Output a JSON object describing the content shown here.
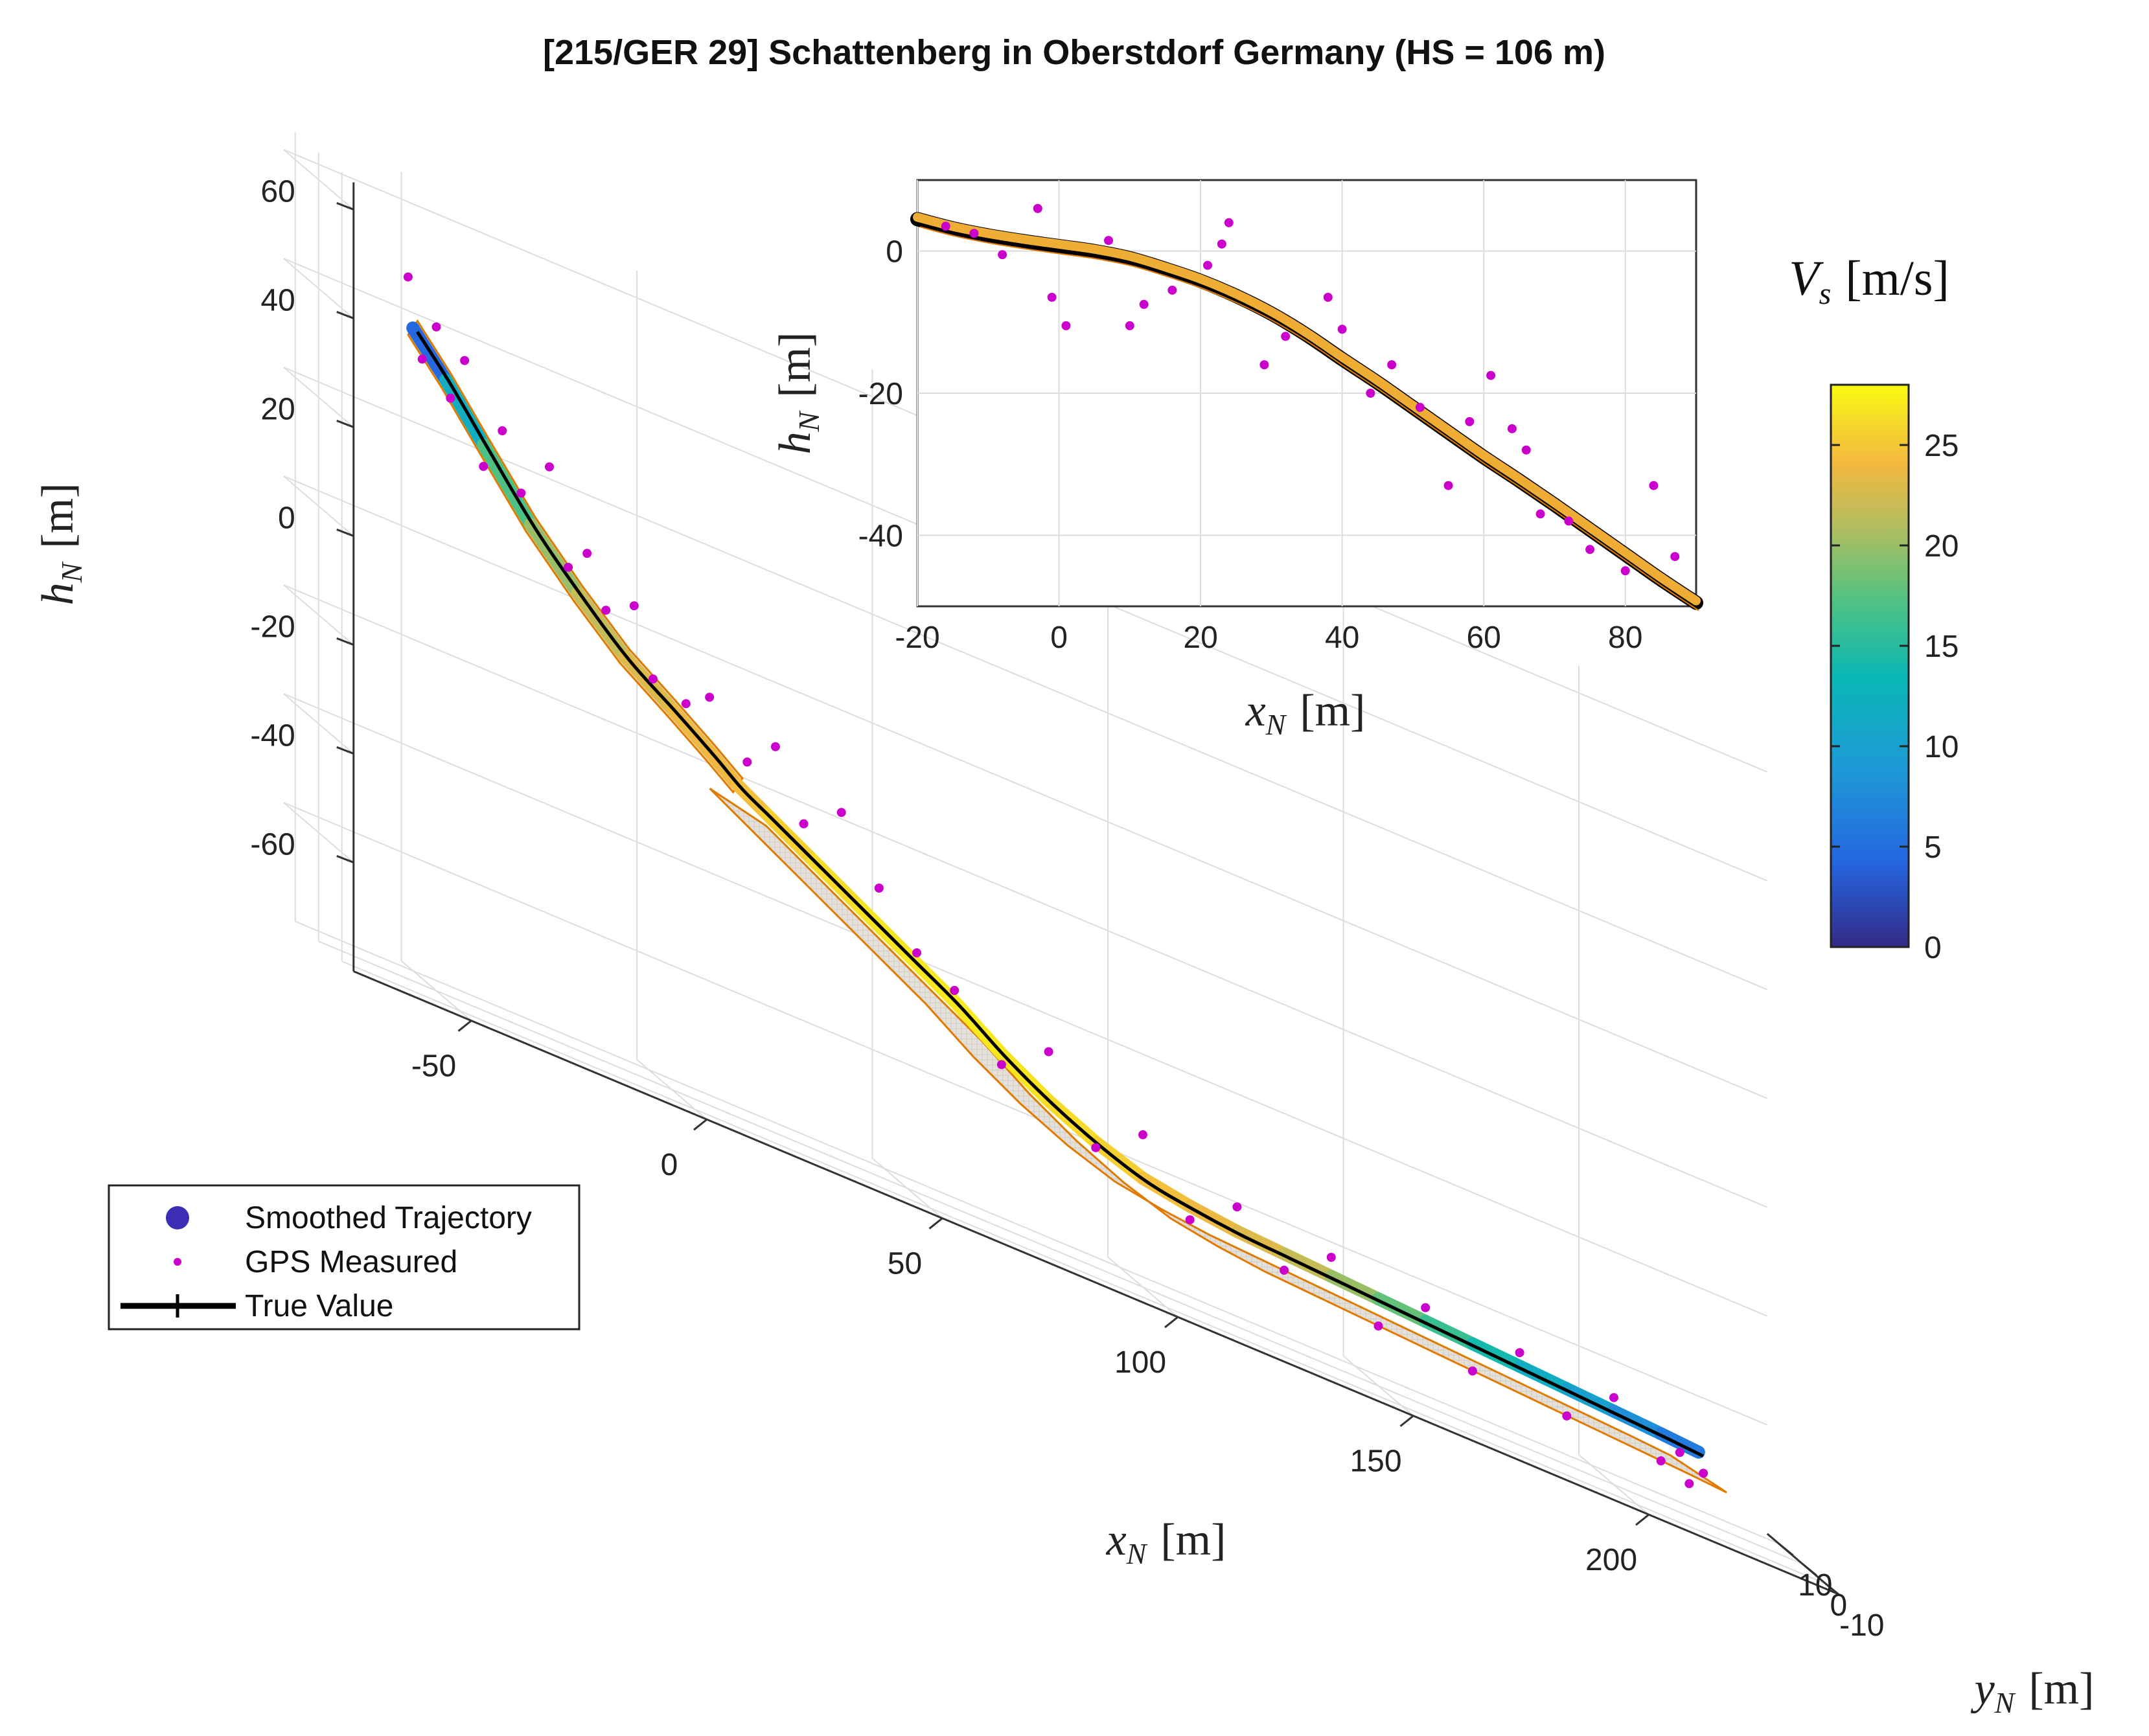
{
  "chart_data": [
    {
      "type": "line3d",
      "title": "[215/GER 29] Schattenberg in Oberstdorf Germany (HS = 106 m)",
      "xlabel": "x_N [m]",
      "ylabel": "y_N [m]",
      "zlabel": "h_N [m]",
      "xlabel_parts": {
        "sym": "x",
        "sub": "N",
        "unit": "[m]"
      },
      "ylabel_parts": {
        "sym": "y",
        "sub": "N",
        "unit": "[m]"
      },
      "zlabel_parts": {
        "sym": "h",
        "sub": "N",
        "unit": "[m]"
      },
      "x_ticks": [
        -50,
        0,
        50,
        100,
        150,
        200
      ],
      "y_ticks": [
        10,
        0,
        -10
      ],
      "z_ticks": [
        60,
        40,
        20,
        0,
        -20,
        -40,
        -60
      ],
      "xlim": [
        -75,
        240
      ],
      "ylim": [
        -15,
        15
      ],
      "zlim": [
        -80,
        65
      ],
      "grid": true,
      "legend_position": "lower-left",
      "legend": [
        {
          "label": "Smoothed Trajectory",
          "marker": "circle",
          "color": "#3d2db5"
        },
        {
          "label": "GPS Measured",
          "marker": "dot",
          "color": "#cc00cc"
        },
        {
          "label": "True Value",
          "marker": "line-plus",
          "color": "#000000"
        }
      ],
      "colorbar": {
        "label": "V_s [m/s]",
        "label_parts": {
          "sym": "V",
          "sub": "s",
          "unit": "[m/s]"
        },
        "range": [
          0,
          28
        ],
        "ticks": [
          0,
          5,
          10,
          15,
          20,
          25
        ],
        "colormap": "parula"
      },
      "series": [
        {
          "name": "Trajectory",
          "x": [
            -55,
            -48,
            -40,
            -30,
            -20,
            -10,
            0,
            8,
            14,
            20,
            30,
            40,
            50,
            60,
            70,
            80,
            90,
            100,
            110,
            120,
            130,
            140,
            150,
            160,
            170,
            180,
            190,
            200,
            210,
            218
          ],
          "y": [
            0,
            0,
            0,
            0,
            0,
            0,
            0,
            0,
            0,
            0,
            0,
            0,
            0,
            0,
            0,
            0,
            0,
            0,
            0,
            0,
            0,
            0,
            0,
            0,
            0,
            0,
            0,
            0,
            0,
            0
          ],
          "h": [
            40,
            33,
            24,
            13,
            4,
            -4,
            -10,
            -15,
            -19,
            -22,
            -27,
            -32,
            -37,
            -42,
            -48,
            -53,
            -57,
            -60,
            -61.5,
            -62.5,
            -63,
            -63.5,
            -64,
            -64.5,
            -65,
            -65.5,
            -66,
            -66.5,
            -67,
            -67.5
          ],
          "speed": [
            0,
            9,
            15,
            19,
            21,
            22.5,
            23.5,
            24,
            24,
            25,
            26,
            26.5,
            27,
            27,
            27,
            26.5,
            26,
            25,
            24,
            23.5,
            22.5,
            21,
            19,
            17,
            15,
            13,
            11,
            9,
            7,
            5
          ]
        },
        {
          "name": "GPS Measured",
          "x": [
            -56,
            -53,
            -50,
            -47,
            -44,
            -40,
            -36,
            -32,
            -26,
            -22,
            -18,
            -14,
            -8,
            -4,
            3,
            8,
            16,
            22,
            28,
            36,
            44,
            52,
            60,
            70,
            80,
            90,
            100,
            110,
            120,
            130,
            140,
            150,
            160,
            170,
            180,
            190,
            200,
            210,
            214,
            216,
            219
          ],
          "h": [
            49,
            35,
            42,
            30,
            38,
            20,
            28,
            18,
            25,
            8,
            12,
            3,
            6,
            -6,
            -8,
            -5,
            -14,
            -9,
            -21,
            -16,
            -27,
            -36,
            -40,
            -50,
            -44,
            -58,
            -52,
            -64,
            -58,
            -66,
            -60,
            -69,
            -62,
            -70,
            -63,
            -71,
            -64,
            -72,
            -69,
            -74,
            -71
          ]
        }
      ]
    },
    {
      "type": "line",
      "xlabel": "x_N [m]",
      "ylabel": "h_N [m]",
      "xlabel_parts": {
        "sym": "x",
        "sub": "N",
        "unit": "[m]"
      },
      "ylabel_parts": {
        "sym": "h",
        "sub": "N",
        "unit": "[m]"
      },
      "x_ticks": [
        -20,
        0,
        20,
        40,
        60,
        80
      ],
      "y_ticks": [
        0,
        -20,
        -40
      ],
      "xlim": [
        -20,
        90
      ],
      "ylim": [
        -50,
        10
      ],
      "grid": true,
      "series": [
        {
          "name": "Trajectory",
          "x": [
            -20,
            -15,
            -10,
            -5,
            0,
            5,
            10,
            15,
            20,
            25,
            30,
            35,
            40,
            45,
            50,
            55,
            60,
            65,
            70,
            75,
            80,
            85,
            90
          ],
          "h": [
            4.5,
            3.2,
            2.2,
            1.4,
            0.7,
            0,
            -1,
            -2.5,
            -4.2,
            -6.3,
            -8.8,
            -11.8,
            -15.2,
            -18.5,
            -22,
            -25.5,
            -29,
            -32.3,
            -35.7,
            -39.2,
            -42.7,
            -46.2,
            -49.5
          ]
        },
        {
          "name": "GPS Measured",
          "x": [
            -16,
            -12,
            -8,
            -3,
            -1,
            1,
            7,
            10,
            12,
            16,
            21,
            23,
            24,
            29,
            32,
            38,
            40,
            44,
            47,
            51,
            55,
            58,
            61,
            64,
            66,
            68,
            72,
            75,
            80,
            84,
            87
          ],
          "h": [
            3.5,
            2.5,
            -0.5,
            6,
            -6.5,
            -10.5,
            1.5,
            -10.5,
            -7.5,
            -5.5,
            -2,
            1,
            4,
            -16,
            -12,
            -6.5,
            -11,
            -20,
            -16,
            -22,
            -33,
            -24,
            -17.5,
            -25,
            -28,
            -37,
            -38,
            -42,
            -45,
            -33,
            -43
          ]
        }
      ]
    }
  ]
}
